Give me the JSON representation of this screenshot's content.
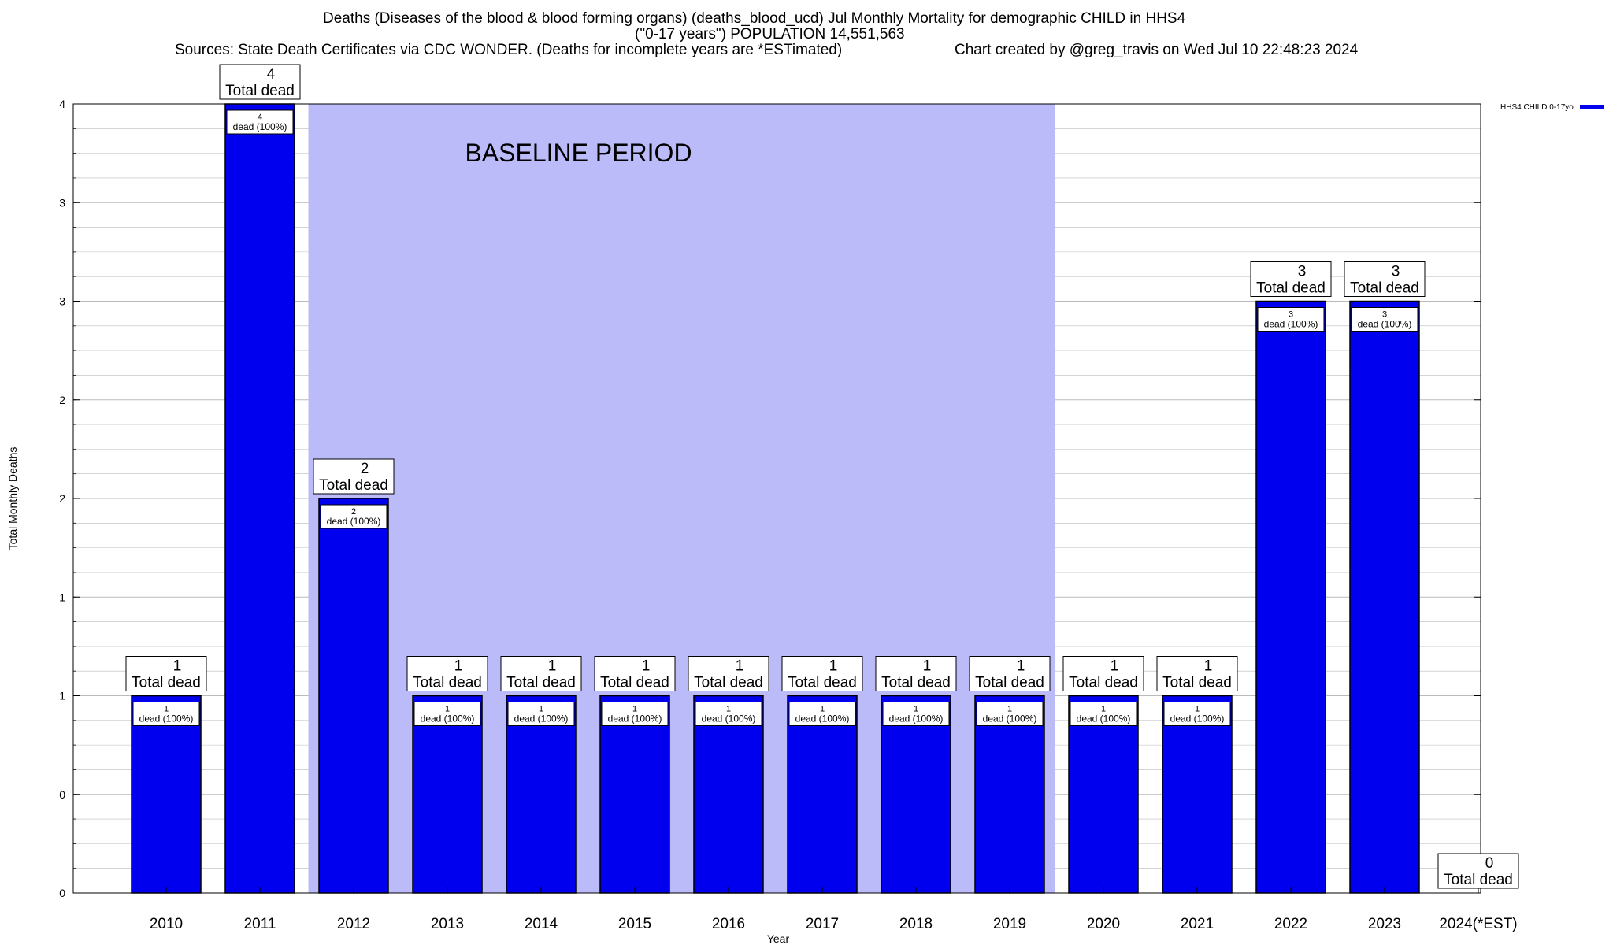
{
  "header": {
    "title_line1": "Deaths (Diseases of the blood & blood forming organs) (deaths_blood_ucd) Jul Monthly Mortality for demographic CHILD in HHS4",
    "title_line2": "(\"0-17 years\") POPULATION 14,551,563",
    "sources": "Sources: State Death Certificates via CDC WONDER. (Deaths for incomplete years are *ESTimated)",
    "credit": "Chart created by @greg_travis on Wed Jul 10 22:48:23 2024"
  },
  "colors": {
    "bar": "#0000ee",
    "bar_border": "#000000",
    "baseline_shade": "#bbbbf9",
    "grid": "#bbbbbb"
  },
  "chart_data": {
    "type": "bar",
    "title": "Deaths (Diseases of the blood & blood forming organs) (deaths_blood_ucd) Jul Monthly Mortality for demographic CHILD in HHS4",
    "xlabel": "Year",
    "ylabel": "Total Monthly Deaths",
    "categories": [
      "2010",
      "2011",
      "2012",
      "2013",
      "2014",
      "2015",
      "2016",
      "2017",
      "2018",
      "2019",
      "2020",
      "2021",
      "2022",
      "2023",
      "2024(*EST)"
    ],
    "series": [
      {
        "name": "HHS4 CHILD 0-17yo",
        "values": [
          1,
          4,
          2,
          1,
          1,
          1,
          1,
          1,
          1,
          1,
          1,
          1,
          3,
          3,
          0
        ]
      }
    ],
    "ylim": [
      0,
      4
    ],
    "y_tick_values": [
      0,
      0.5,
      1,
      1.5,
      2,
      2.5,
      3,
      3.5,
      4
    ],
    "y_tick_labels": [
      "0",
      "0",
      "1",
      "1",
      "2",
      "2",
      "3",
      "3",
      "4"
    ],
    "top_labels": [
      {
        "value": "1",
        "text": "Total dead"
      },
      {
        "value": "4",
        "text": "Total dead"
      },
      {
        "value": "2",
        "text": "Total dead"
      },
      {
        "value": "1",
        "text": "Total dead"
      },
      {
        "value": "1",
        "text": "Total dead"
      },
      {
        "value": "1",
        "text": "Total dead"
      },
      {
        "value": "1",
        "text": "Total dead"
      },
      {
        "value": "1",
        "text": "Total dead"
      },
      {
        "value": "1",
        "text": "Total dead"
      },
      {
        "value": "1",
        "text": "Total dead"
      },
      {
        "value": "1",
        "text": "Total dead"
      },
      {
        "value": "1",
        "text": "Total dead"
      },
      {
        "value": "3",
        "text": "Total dead"
      },
      {
        "value": "3",
        "text": "Total dead"
      },
      {
        "value": "0",
        "text": "Total dead"
      }
    ],
    "inner_labels": [
      {
        "value": "1",
        "text": "dead (100%)"
      },
      {
        "value": "4",
        "text": "dead (100%)"
      },
      {
        "value": "2",
        "text": "dead (100%)"
      },
      {
        "value": "1",
        "text": "dead (100%)"
      },
      {
        "value": "1",
        "text": "dead (100%)"
      },
      {
        "value": "1",
        "text": "dead (100%)"
      },
      {
        "value": "1",
        "text": "dead (100%)"
      },
      {
        "value": "1",
        "text": "dead (100%)"
      },
      {
        "value": "1",
        "text": "dead (100%)"
      },
      {
        "value": "1",
        "text": "dead (100%)"
      },
      {
        "value": "1",
        "text": "dead (100%)"
      },
      {
        "value": "1",
        "text": "dead (100%)"
      },
      {
        "value": "3",
        "text": "dead (100%)"
      },
      {
        "value": "3",
        "text": "dead (100%)"
      },
      null
    ],
    "baseline_period": {
      "label": "BASELINE PERIOD",
      "from": "2012",
      "to": "2019"
    },
    "grid": true,
    "legend": {
      "position": "top-right",
      "entries": [
        "HHS4 CHILD 0-17yo"
      ]
    }
  }
}
